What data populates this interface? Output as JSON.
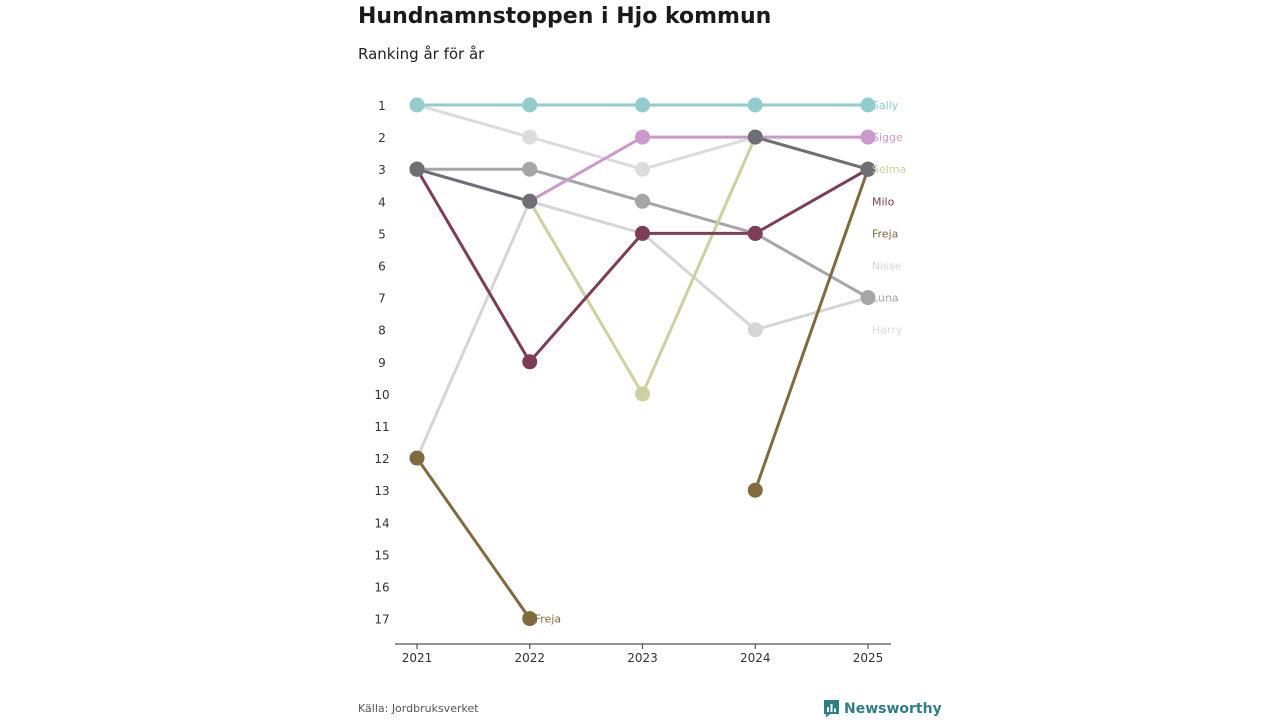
{
  "header": {
    "title": "Hundnamnstoppen i Hjo kommun",
    "subtitle": "Ranking år för år"
  },
  "footer": {
    "source": "Källa: Jordbruksverket",
    "brand": "Newsworthy"
  },
  "chart_data": {
    "type": "line",
    "title": "Hundnamnstoppen i Hjo kommun",
    "subtitle": "Ranking år för år",
    "x": [
      "2021",
      "2022",
      "2023",
      "2024",
      "2025"
    ],
    "y_ticks": [
      1,
      2,
      3,
      4,
      5,
      6,
      7,
      8,
      9,
      10,
      11,
      12,
      13,
      14,
      15,
      16,
      17
    ],
    "ylim": [
      1,
      17
    ],
    "y_inverted": true,
    "grid": false,
    "series": [
      {
        "name": "Harry",
        "color": "#dcdcdc",
        "values": [
          1,
          2,
          3,
          2,
          null
        ],
        "end_label": "Harry",
        "end_label_rank": 8
      },
      {
        "name": "Nisse",
        "color": "#d5d5d5",
        "values": [
          12,
          4,
          5,
          8,
          7
        ],
        "end_label": "Nisse",
        "end_label_rank": 6
      },
      {
        "name": "Luna",
        "color": "#a6a6a6",
        "values": [
          3,
          3,
          4,
          5,
          7
        ],
        "end_label": "Luna",
        "end_label_rank": 7
      },
      {
        "name": "Sigge",
        "color": "#cc99cc",
        "values": [
          3,
          4,
          2,
          2,
          2
        ],
        "end_label": "Sigge",
        "end_label_rank": 2
      },
      {
        "name": "Selma",
        "color": "#cfcf9f",
        "values": [
          null,
          4,
          10,
          2,
          3
        ],
        "end_label": "Selma",
        "end_label_rank": 3
      },
      {
        "name": "Milo",
        "color": "#7d3e55",
        "values": [
          3,
          9,
          5,
          5,
          3
        ],
        "end_label": "Milo",
        "end_label_rank": 4
      },
      {
        "name": "Freja",
        "color": "#806a3e",
        "values": [
          12,
          17,
          null,
          13,
          3
        ],
        "end_label": "Freja",
        "end_label_rank": 5,
        "extra_label": "Freja"
      },
      {
        "name": "Sally",
        "color": "#93cccd",
        "values": [
          1,
          1,
          1,
          1,
          1
        ],
        "end_label": "Sally",
        "end_label_rank": 1
      },
      {
        "name": "",
        "color": "#6e6e75",
        "values": [
          3,
          4,
          null,
          2,
          3
        ]
      }
    ]
  }
}
